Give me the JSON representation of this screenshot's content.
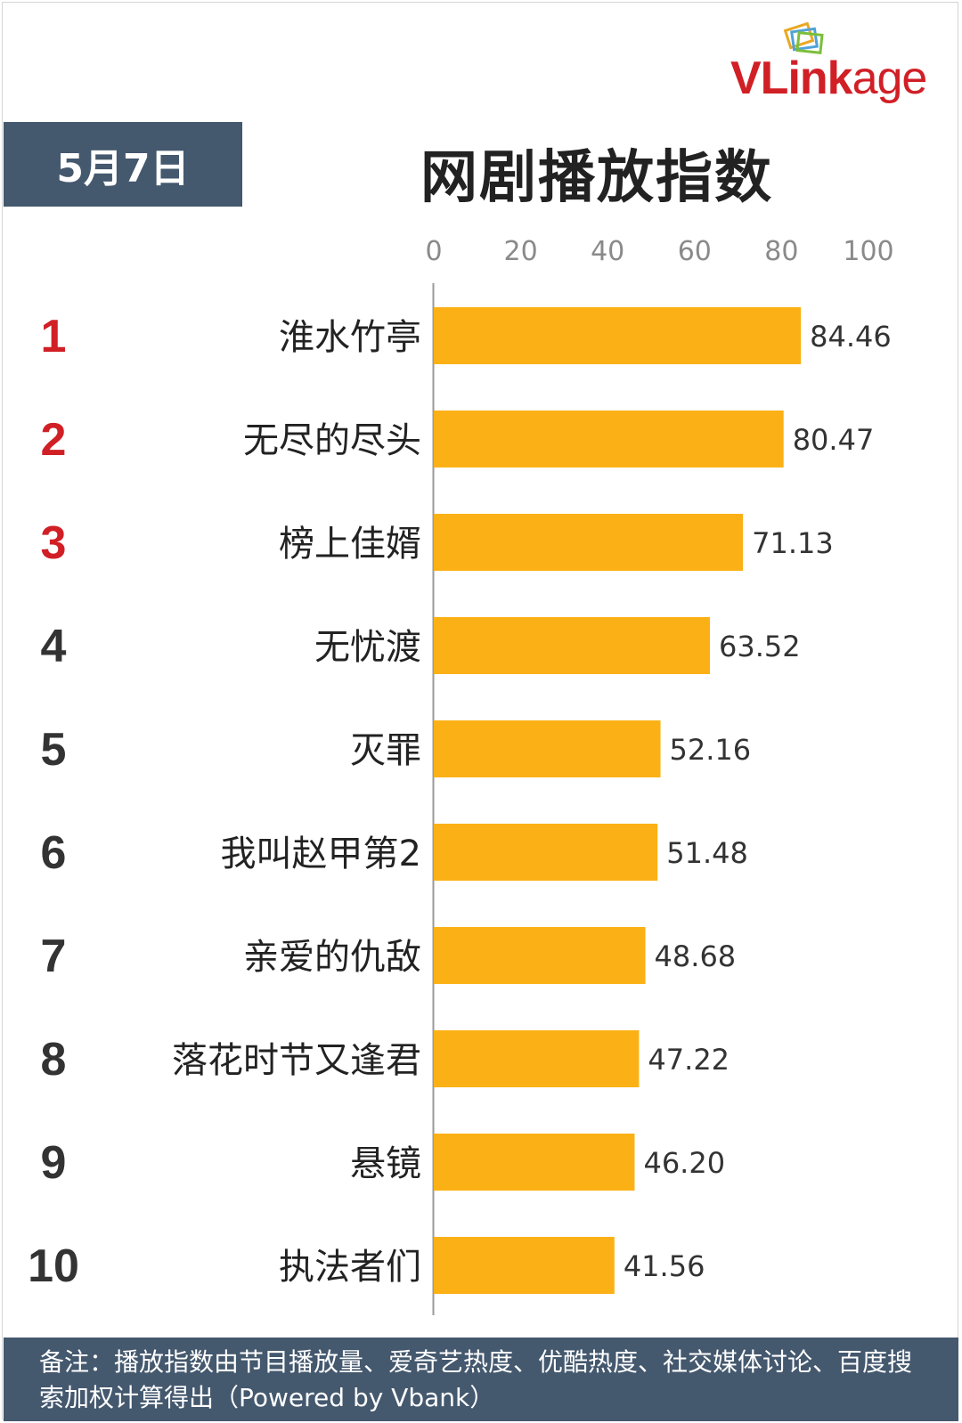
{
  "brand": {
    "logo_text_bold": "VLink",
    "logo_text_light": "age"
  },
  "header": {
    "date": "5月7日",
    "title": "网剧播放指数"
  },
  "chart_data": {
    "type": "bar",
    "orientation": "horizontal",
    "title": "网剧播放指数",
    "xlim": [
      0,
      100
    ],
    "xticks": [
      0,
      20,
      40,
      60,
      80,
      100
    ],
    "grid": false,
    "bar_color": "#fbb116",
    "rank_highlight_color": "#d11f26",
    "rank_color": "#333333",
    "ranks": [
      "1",
      "2",
      "3",
      "4",
      "5",
      "6",
      "7",
      "8",
      "9",
      "10"
    ],
    "categories": [
      "淮水竹亭",
      "无尽的尽头",
      "榜上佳婿",
      "无忧渡",
      "灭罪",
      "我叫赵甲第2",
      "亲爱的仇敌",
      "落花时节又逢君",
      "悬镜",
      "执法者们"
    ],
    "values": [
      84.46,
      80.47,
      71.13,
      63.52,
      52.16,
      51.48,
      48.68,
      47.22,
      46.2,
      41.56
    ],
    "value_labels": [
      "84.46",
      "80.47",
      "71.13",
      "63.52",
      "52.16",
      "51.48",
      "48.68",
      "47.22",
      "46.20",
      "41.56"
    ]
  },
  "footer": {
    "note": "备注：播放指数由节目播放量、爱奇艺热度、优酷热度、社交媒体讨论、百度搜索加权计算得出（Powered by Vbank）"
  }
}
